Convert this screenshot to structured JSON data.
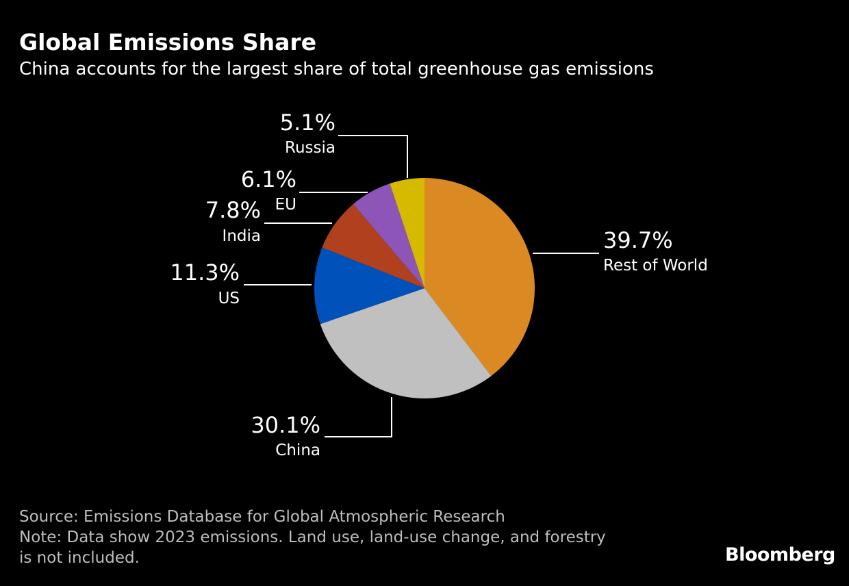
{
  "chart_data": {
    "type": "pie",
    "title": "Global Emissions Share",
    "subtitle": "China accounts for the largest share of total greenhouse gas emissions",
    "unit": "%",
    "start": "top, clockwise",
    "slices": [
      {
        "label": "Rest of World",
        "value": 39.7,
        "display": "39.7%",
        "color": "#DB8A23"
      },
      {
        "label": "China",
        "value": 30.1,
        "display": "30.1%",
        "color": "#C0C0C0"
      },
      {
        "label": "US",
        "value": 11.3,
        "display": "11.3%",
        "color": "#0052BA"
      },
      {
        "label": "India",
        "value": 7.8,
        "display": "7.8%",
        "color": "#B0401E"
      },
      {
        "label": "EU",
        "value": 6.1,
        "display": "6.1%",
        "color": "#8E55B8"
      },
      {
        "label": "Russia",
        "value": 5.1,
        "display": "5.1%",
        "color": "#D6BA00"
      }
    ]
  },
  "footer": {
    "source": "Source: Emissions Database for Global Atmospheric Research",
    "note_line1": "Note: Data show 2023 emissions. Land use, land-use change, and forestry",
    "note_line2": "is not included.",
    "brand": "Bloomberg"
  }
}
